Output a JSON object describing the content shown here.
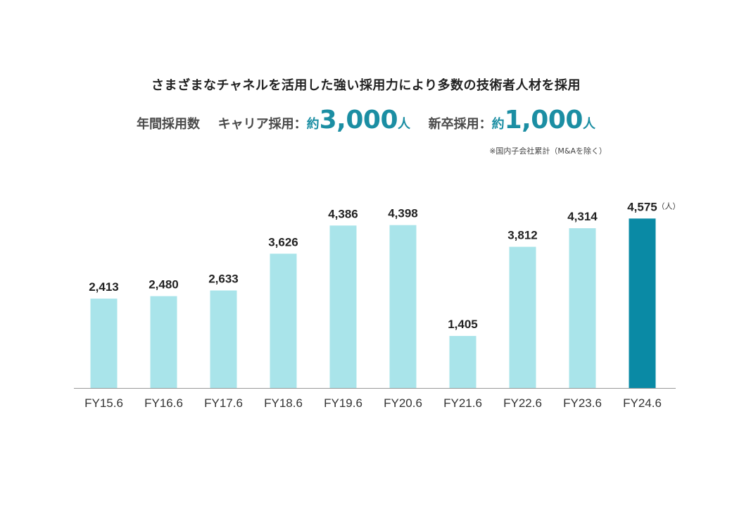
{
  "header": {
    "headline": "さまざまなチャネルを活用した強い採用力により多数の技術者人材を採用",
    "annual_label": "年間採用数",
    "career_label": "キャリア採用：",
    "career_approx": "約",
    "career_value": "3,000",
    "career_unit": "人",
    "new_grad_label": "新卒採用：",
    "new_grad_approx": "約",
    "new_grad_value": "1,000",
    "new_grad_unit": "人",
    "note": "※国内子会社累計（M&Aを除く）"
  },
  "colors": {
    "bar": "#a9e4ea",
    "highlight_bar": "#0a8aa5",
    "accent_text": "#1b8ea3",
    "axis": "#999999"
  },
  "chart_data": {
    "type": "bar",
    "categories": [
      "FY15.6",
      "FY16.6",
      "FY17.6",
      "FY18.6",
      "FY19.6",
      "FY20.6",
      "FY21.6",
      "FY22.6",
      "FY23.6",
      "FY24.6"
    ],
    "values": [
      2413,
      2480,
      2633,
      3626,
      4386,
      4398,
      1405,
      3812,
      4314,
      4575
    ],
    "data_labels": [
      "2,413",
      "2,480",
      "2,633",
      "3,626",
      "4,386",
      "4,398",
      "1,405",
      "3,812",
      "4,314",
      "4,575"
    ],
    "highlight_index": 9,
    "unit_label": "（人）",
    "ylim": [
      0,
      4700
    ],
    "grid": false,
    "legend": "none"
  }
}
